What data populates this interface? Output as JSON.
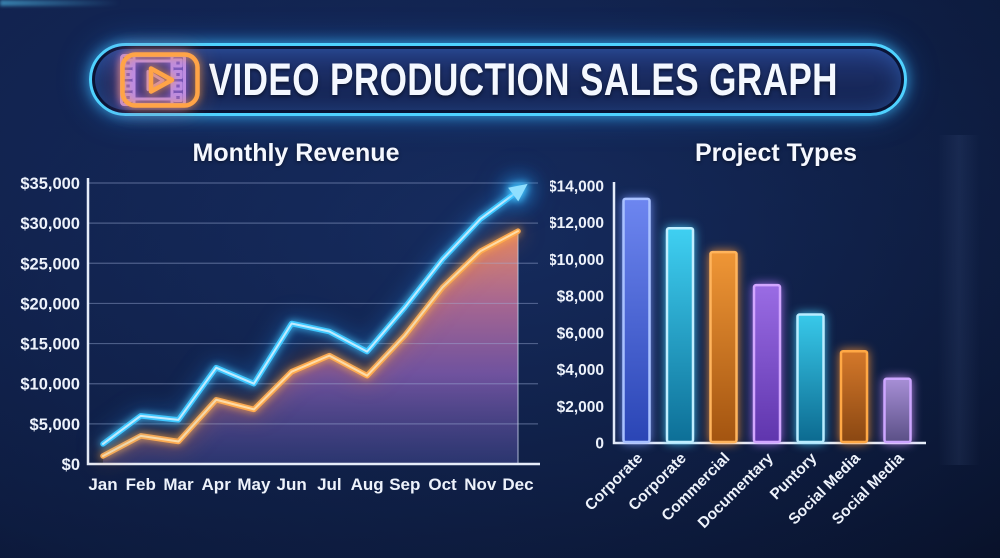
{
  "header": {
    "title": "VIDEO PRODUCTION SALES GRAPH",
    "left_icon": "film-strip-icon",
    "right_icon": "play-button-icon",
    "border_color": "#4fd2ff",
    "film_icon_color": "#b78ef5",
    "play_icon_color": "#ffa447"
  },
  "chart_data": [
    {
      "type": "line",
      "title": "Monthly Revenue",
      "categories": [
        "Jan",
        "Feb",
        "Mar",
        "Apr",
        "May",
        "Jun",
        "Jul",
        "Aug",
        "Sep",
        "Oct",
        "Nov",
        "Dec"
      ],
      "series": [
        {
          "name": "revenue-line-blue",
          "color": "#3fc8ff",
          "core_color": "#cfeeff",
          "arrow_end": true,
          "values": [
            2500,
            6000,
            5500,
            12000,
            10000,
            17500,
            16500,
            14000,
            19500,
            25500,
            30500,
            34000
          ]
        },
        {
          "name": "revenue-line-orange",
          "color": "#ffab4f",
          "core_color": "#ffe2b0",
          "area_fill": true,
          "values": [
            1000,
            3500,
            2800,
            8000,
            6800,
            11500,
            13500,
            11000,
            16000,
            22000,
            26500,
            29000
          ]
        }
      ],
      "ylim": [
        0,
        35000
      ],
      "ytick_values": [
        0,
        5000,
        10000,
        15000,
        20000,
        25000,
        30000,
        35000
      ],
      "ytick_labels": [
        "$0",
        "$5,000",
        "$10,000",
        "$15,000",
        "$20,000",
        "$25,000",
        "$30,000",
        "$35,000"
      ],
      "grid": true,
      "legend": "none",
      "area_gradient": [
        "#f09066",
        "#c0719b",
        "#8a5fb4",
        "#41478f"
      ]
    },
    {
      "type": "bar",
      "title": "Project Types",
      "categories": [
        "Corporate",
        "Corporate",
        "Commercial",
        "Documentary",
        "Puntory",
        "Social Media",
        "Social Media"
      ],
      "values": [
        13300,
        11700,
        10400,
        8600,
        7000,
        5000,
        3500
      ],
      "bar_colors": [
        {
          "border": "#a9c1ff",
          "top": "#6d86f0",
          "bottom": "#2a45b5",
          "glow": "blue"
        },
        {
          "border": "#bfeeff",
          "top": "#3fd0f2",
          "bottom": "#0d6f97",
          "glow": "cyan"
        },
        {
          "border": "#ffb45c",
          "top": "#ef9636",
          "bottom": "#a35410",
          "glow": "orange"
        },
        {
          "border": "#d2a6ff",
          "top": "#9a6ce4",
          "bottom": "#5f35ad",
          "glow": "purple"
        },
        {
          "border": "#b8ecff",
          "top": "#38c9ea",
          "bottom": "#0c6a90",
          "glow": "cyan"
        },
        {
          "border": "#ffa845",
          "top": "#d4782a",
          "bottom": "#8a4712",
          "glow": "orange"
        },
        {
          "border": "#cda6ff",
          "top": "#a78fd6",
          "bottom": "#5a4f86",
          "glow": "lav"
        }
      ],
      "ylim": [
        0,
        14000
      ],
      "ytick_values": [
        0,
        2000,
        4000,
        6000,
        8000,
        10000,
        12000,
        14000
      ],
      "ytick_labels": [
        "0",
        "$2,000",
        "$4,000",
        "$6,000",
        "$8,000",
        "$10,000",
        "$12,000",
        "$14,000"
      ],
      "grid": false,
      "legend": "none"
    }
  ]
}
